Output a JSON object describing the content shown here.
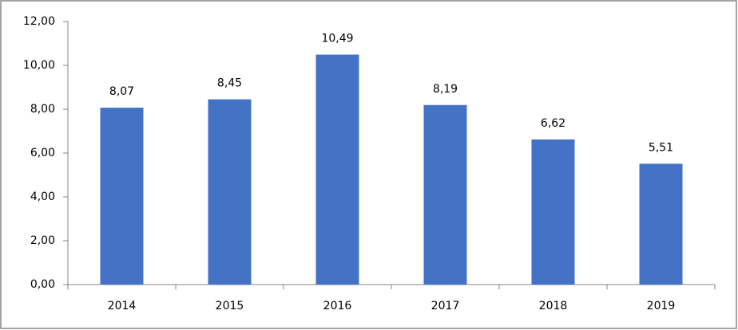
{
  "chart_data": {
    "type": "bar",
    "categories": [
      "2014",
      "2015",
      "2016",
      "2017",
      "2018",
      "2019"
    ],
    "values": [
      8.07,
      8.45,
      10.49,
      8.19,
      6.62,
      5.51
    ],
    "value_labels": [
      "8,07",
      "8,45",
      "10,49",
      "8,19",
      "6,62",
      "5,51"
    ],
    "color": "#4472c4",
    "ylim": [
      0,
      12
    ],
    "yticks": [
      {
        "value": 0,
        "label": "0,00"
      },
      {
        "value": 2,
        "label": "2,00"
      },
      {
        "value": 4,
        "label": "4,00"
      },
      {
        "value": 6,
        "label": "6,00"
      },
      {
        "value": 8,
        "label": "8,00"
      },
      {
        "value": 10,
        "label": "10,00"
      },
      {
        "value": 12,
        "label": "12,00"
      }
    ],
    "grid": false
  }
}
